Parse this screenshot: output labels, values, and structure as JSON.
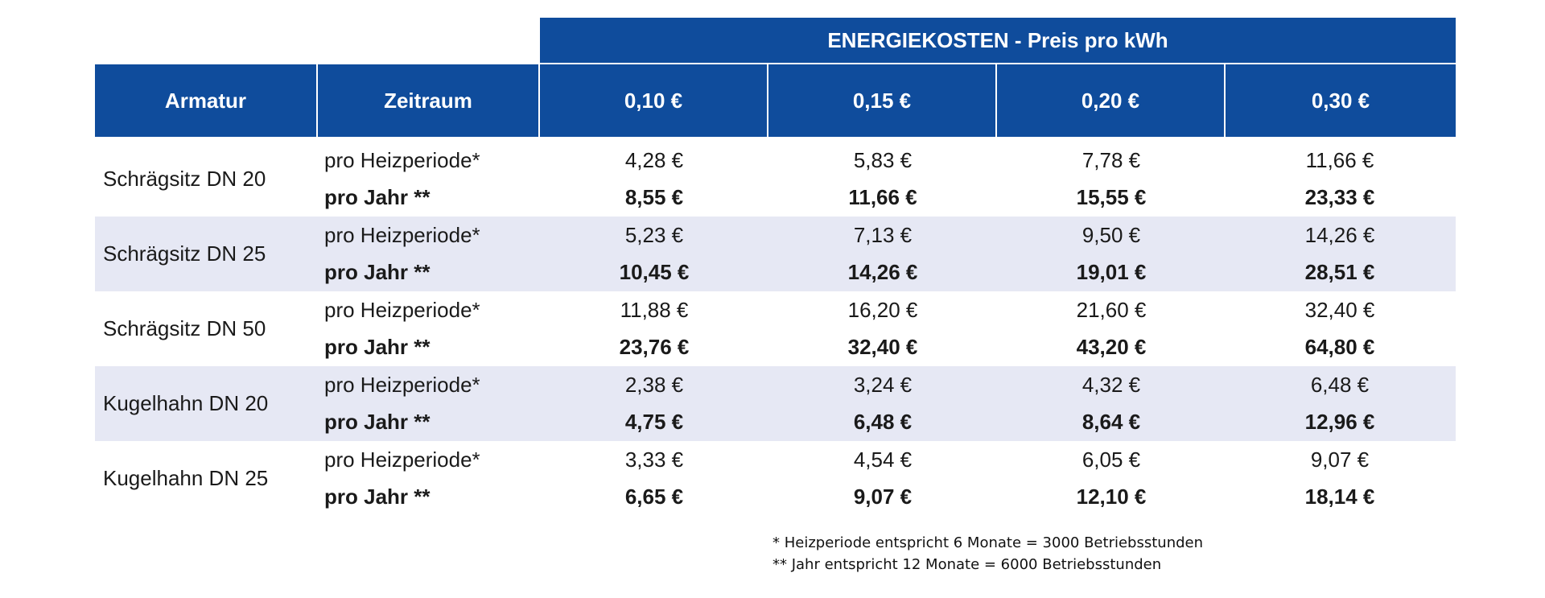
{
  "super_header": "ENERGIEKOSTEN - Preis pro kWh",
  "headers": {
    "armatur": "Armatur",
    "zeitraum": "Zeitraum",
    "prices": [
      "0,10 €",
      "0,15 €",
      "0,20 €",
      "0,30 €"
    ]
  },
  "rows": [
    {
      "armatur": "Schrägsitz DN 20",
      "period_label": "pro Heizperiode*",
      "year_label": "pro Jahr **",
      "period_values": [
        "4,28 €",
        "5,83 €",
        "7,78 €",
        "11,66 €"
      ],
      "year_values": [
        "8,55 €",
        "11,66 €",
        "15,55 €",
        "23,33 €"
      ]
    },
    {
      "armatur": "Schrägsitz DN 25",
      "period_label": "pro Heizperiode*",
      "year_label": "pro Jahr **",
      "period_values": [
        "5,23 €",
        "7,13 €",
        "9,50 €",
        "14,26 €"
      ],
      "year_values": [
        "10,45 €",
        "14,26 €",
        "19,01 €",
        "28,51 €"
      ]
    },
    {
      "armatur": "Schrägsitz DN 50",
      "period_label": "pro Heizperiode*",
      "year_label": "pro Jahr **",
      "period_values": [
        "11,88 €",
        "16,20 €",
        "21,60 €",
        "32,40 €"
      ],
      "year_values": [
        "23,76 €",
        "32,40 €",
        "43,20 €",
        "64,80 €"
      ]
    },
    {
      "armatur": "Kugelhahn DN 20",
      "period_label": "pro Heizperiode*",
      "year_label": "pro Jahr **",
      "period_values": [
        "2,38 €",
        "3,24 €",
        "4,32 €",
        "6,48 €"
      ],
      "year_values": [
        "4,75 €",
        "6,48 €",
        "8,64 €",
        "12,96 €"
      ]
    },
    {
      "armatur": "Kugelhahn DN 25",
      "period_label": "pro Heizperiode*",
      "year_label": "pro Jahr **",
      "period_values": [
        "3,33 €",
        "4,54 €",
        "6,05 €",
        "9,07 €"
      ],
      "year_values": [
        "6,65 €",
        "9,07 €",
        "12,10 €",
        "18,14 €"
      ]
    }
  ],
  "footnotes": [
    "* Heizperiode entspricht 6 Monate = 3000 Betriebsstunden",
    "** Jahr entspricht 12 Monate = 6000 Betriebsstunden"
  ],
  "colors": {
    "header_blue": "#0f4c9c",
    "shade": "#e6e8f4"
  }
}
